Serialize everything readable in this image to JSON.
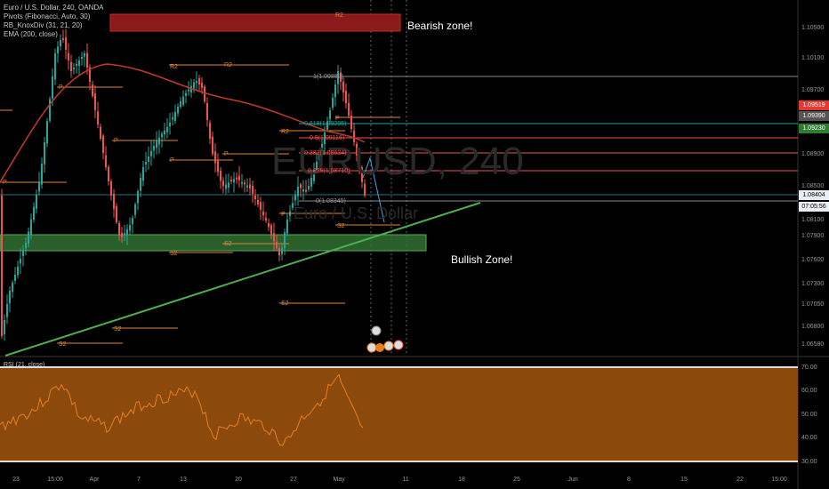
{
  "legend": {
    "symbol": "Euro / U.S. Dollar, 240, OANDA",
    "pivots": "Pivots (Fibonacci, Auto, 30)",
    "knoxdiv": "RB_KnoxDiv (31, 21, 20)",
    "ema": "EMA (200, close)"
  },
  "watermark": {
    "symbol": "EURUSD, 240",
    "name": "Euro / U.S. Dollar"
  },
  "annotations": {
    "bearish": "Bearish zone!",
    "bullish": "Bullish Zone!"
  },
  "fib": {
    "l1": "1(1.09880)",
    "l618": "0.618(1.09295)",
    "l5": "0.5(1.09116)",
    "l382": "0.382(1.08934)",
    "l236": "0.236(1.08710)",
    "l0": "0(1.08349)"
  },
  "pivots": {
    "r2": "R2",
    "p": "P",
    "s2": "S2"
  },
  "price_axis": [
    "1.10500",
    "1.10100",
    "1.09700",
    "1.08900",
    "1.08500",
    "1.08100",
    "1.07900",
    "1.07600",
    "1.07300",
    "1.07050",
    "1.06800",
    "1.06580"
  ],
  "badges": {
    "red": "1.09519",
    "gray": "1.09390",
    "green": "1.09230",
    "price": "1.08404",
    "timer": "07:05:56"
  },
  "rsi": {
    "title": "RSI (21, close)",
    "axis": [
      "70.00",
      "60.00",
      "50.00",
      "40.00",
      "30.00"
    ]
  },
  "time_axis": [
    "23",
    "15:00",
    "Apr",
    "7",
    "13",
    "20",
    "27",
    "May",
    "11",
    "18",
    "25",
    "Jun",
    "8",
    "15",
    "22",
    "15:00"
  ],
  "colors": {
    "bg": "#000000",
    "up": "#26a69a",
    "down": "#ef5350",
    "ema": "#c0392b",
    "rsi_fill": "#8b4a0c",
    "rsi_line": "#e67e22",
    "bear_zone": "#b71c1c",
    "bull_zone": "#43a047",
    "trend": "#4caf50"
  }
}
